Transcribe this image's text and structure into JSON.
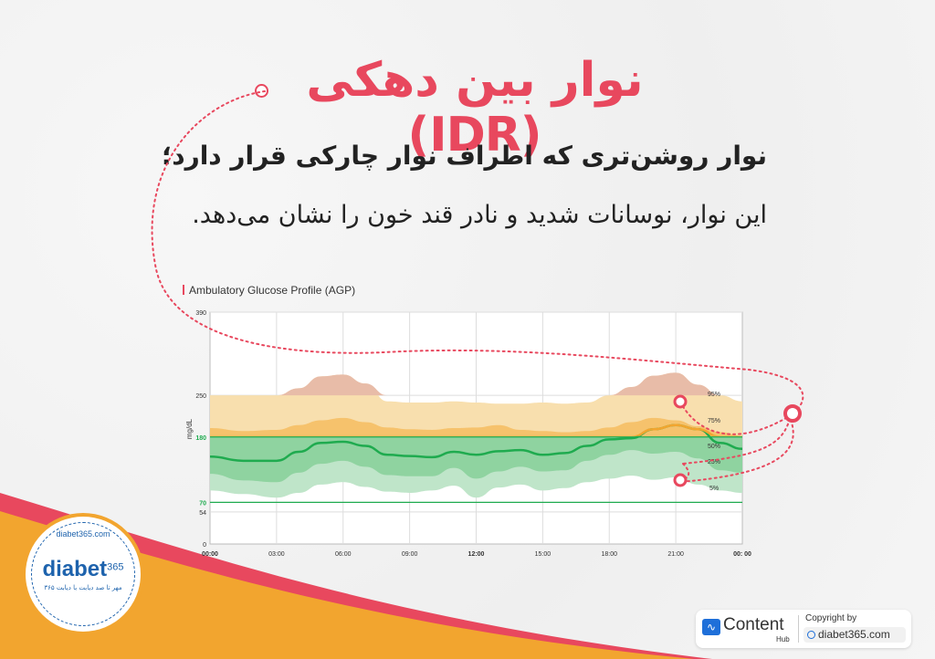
{
  "title": "نوار بین دهکی (IDR)",
  "subtitle_line1": "نوار روشن‌تری که اطراف نوار چارکی قرار دارد؛",
  "subtitle_line2": "این نوار، نوسانات شدید و نادر قند خون را نشان می‌دهد.",
  "chart_data": {
    "type": "area",
    "title": "Ambulatory Glucose Profile (AGP)",
    "ylabel": "mg/dL",
    "ylim": [
      0,
      390
    ],
    "y_ticks": [
      0,
      54,
      70,
      180,
      250,
      390
    ],
    "target_range": [
      70,
      180
    ],
    "x_ticks": [
      "00:00",
      "03:00",
      "06:00",
      "09:00",
      "12:00",
      "15:00",
      "18:00",
      "21:00",
      "00: 00"
    ],
    "x_hours": [
      0,
      1.5,
      3,
      4,
      5,
      6,
      7,
      8,
      9,
      10,
      11,
      12,
      13,
      14,
      15,
      16,
      17,
      18,
      19,
      20,
      21,
      22,
      23,
      24
    ],
    "series": [
      {
        "name": "95%",
        "values": [
          250,
          250,
          250,
          262,
          282,
          285,
          270,
          240,
          238,
          238,
          240,
          238,
          236,
          236,
          238,
          236,
          238,
          250,
          264,
          283,
          288,
          268,
          250,
          240
        ]
      },
      {
        "name": "75%",
        "values": [
          195,
          190,
          192,
          200,
          208,
          212,
          205,
          196,
          193,
          192,
          195,
          196,
          200,
          192,
          190,
          188,
          190,
          196,
          205,
          212,
          208,
          198,
          188,
          182
        ]
      },
      {
        "name": "50%",
        "values": [
          147,
          140,
          140,
          155,
          170,
          172,
          165,
          150,
          148,
          146,
          155,
          150,
          156,
          158,
          150,
          153,
          165,
          176,
          178,
          193,
          200,
          193,
          170,
          160
        ]
      },
      {
        "name": "25%",
        "values": [
          118,
          107,
          104,
          120,
          135,
          140,
          130,
          116,
          114,
          114,
          128,
          110,
          122,
          130,
          122,
          124,
          140,
          150,
          158,
          152,
          155,
          144,
          124,
          120
        ]
      },
      {
        "name": "5%",
        "values": [
          90,
          84,
          78,
          86,
          100,
          104,
          96,
          88,
          86,
          90,
          98,
          78,
          95,
          100,
          90,
          94,
          104,
          110,
          115,
          108,
          112,
          100,
          90,
          86
        ]
      }
    ]
  },
  "colors": {
    "accent": "#e8485e",
    "idr_high": "#f8dfae",
    "iqr_high": "#f6c26c",
    "idr_low": "#bfe5c9",
    "iqr_low": "#8fd3a0",
    "median": "#1fab4f",
    "median_high": "#f2a52f",
    "peak": "#e8bca8",
    "target": "#1fab4f",
    "logo_blue": "#1e63ad",
    "wave_orange": "#f2a52f"
  },
  "logo": {
    "brand": "diabet",
    "brand_sup": "365",
    "url": "diabet365.com",
    "tagline": "مهر تا صد دیابت با دیابت ۳۶۵"
  },
  "badge": {
    "content_word": "Content",
    "hub_word": "Hub",
    "copyright_label": "Copyright by",
    "url": "diabet365.com"
  },
  "icons": [
    "content-hub-icon",
    "globe-icon"
  ]
}
